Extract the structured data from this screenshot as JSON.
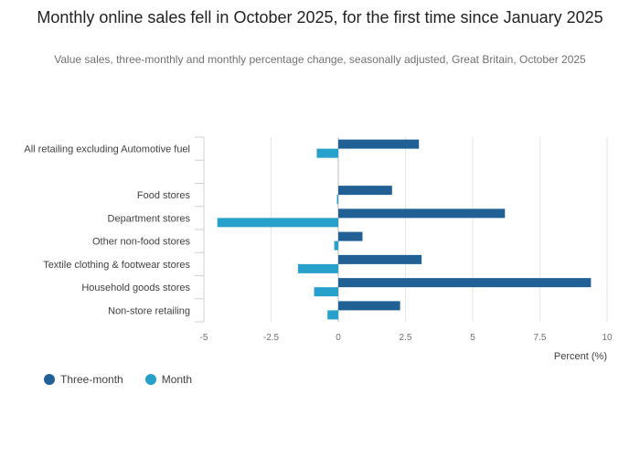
{
  "chart_data": {
    "type": "bar",
    "orientation": "horizontal",
    "title": "Monthly online sales fell in October 2025, for the first time since January 2025",
    "subtitle": "Value sales, three-monthly and monthly percentage change, seasonally adjusted, Great Britain, October 2025",
    "categories": [
      "All retailing excluding Automotive fuel",
      "",
      "Food stores",
      "Department stores",
      "Other non-food stores",
      "Textile clothing & footwear stores",
      "Household goods stores",
      "Non-store retailing"
    ],
    "series": [
      {
        "name": "Three-month",
        "color": "#206095",
        "values": [
          3.0,
          null,
          2.0,
          6.2,
          0.9,
          3.1,
          9.4,
          2.3
        ]
      },
      {
        "name": "Month",
        "color": "#27a0cc",
        "values": [
          -0.8,
          null,
          -0.05,
          -4.5,
          -0.15,
          -1.5,
          -0.9,
          -0.4
        ]
      }
    ],
    "xlabel": "Percent (%)",
    "ylabel": "",
    "xlim": [
      -5,
      10
    ],
    "xticks": [
      -5,
      -2.5,
      0,
      2.5,
      5,
      7.5,
      10
    ],
    "xtick_labels": [
      "-5",
      "-2.5",
      "0",
      "2.5",
      "5",
      "7.5",
      "10"
    ],
    "grid": true,
    "legend_position": "bottom-left"
  }
}
